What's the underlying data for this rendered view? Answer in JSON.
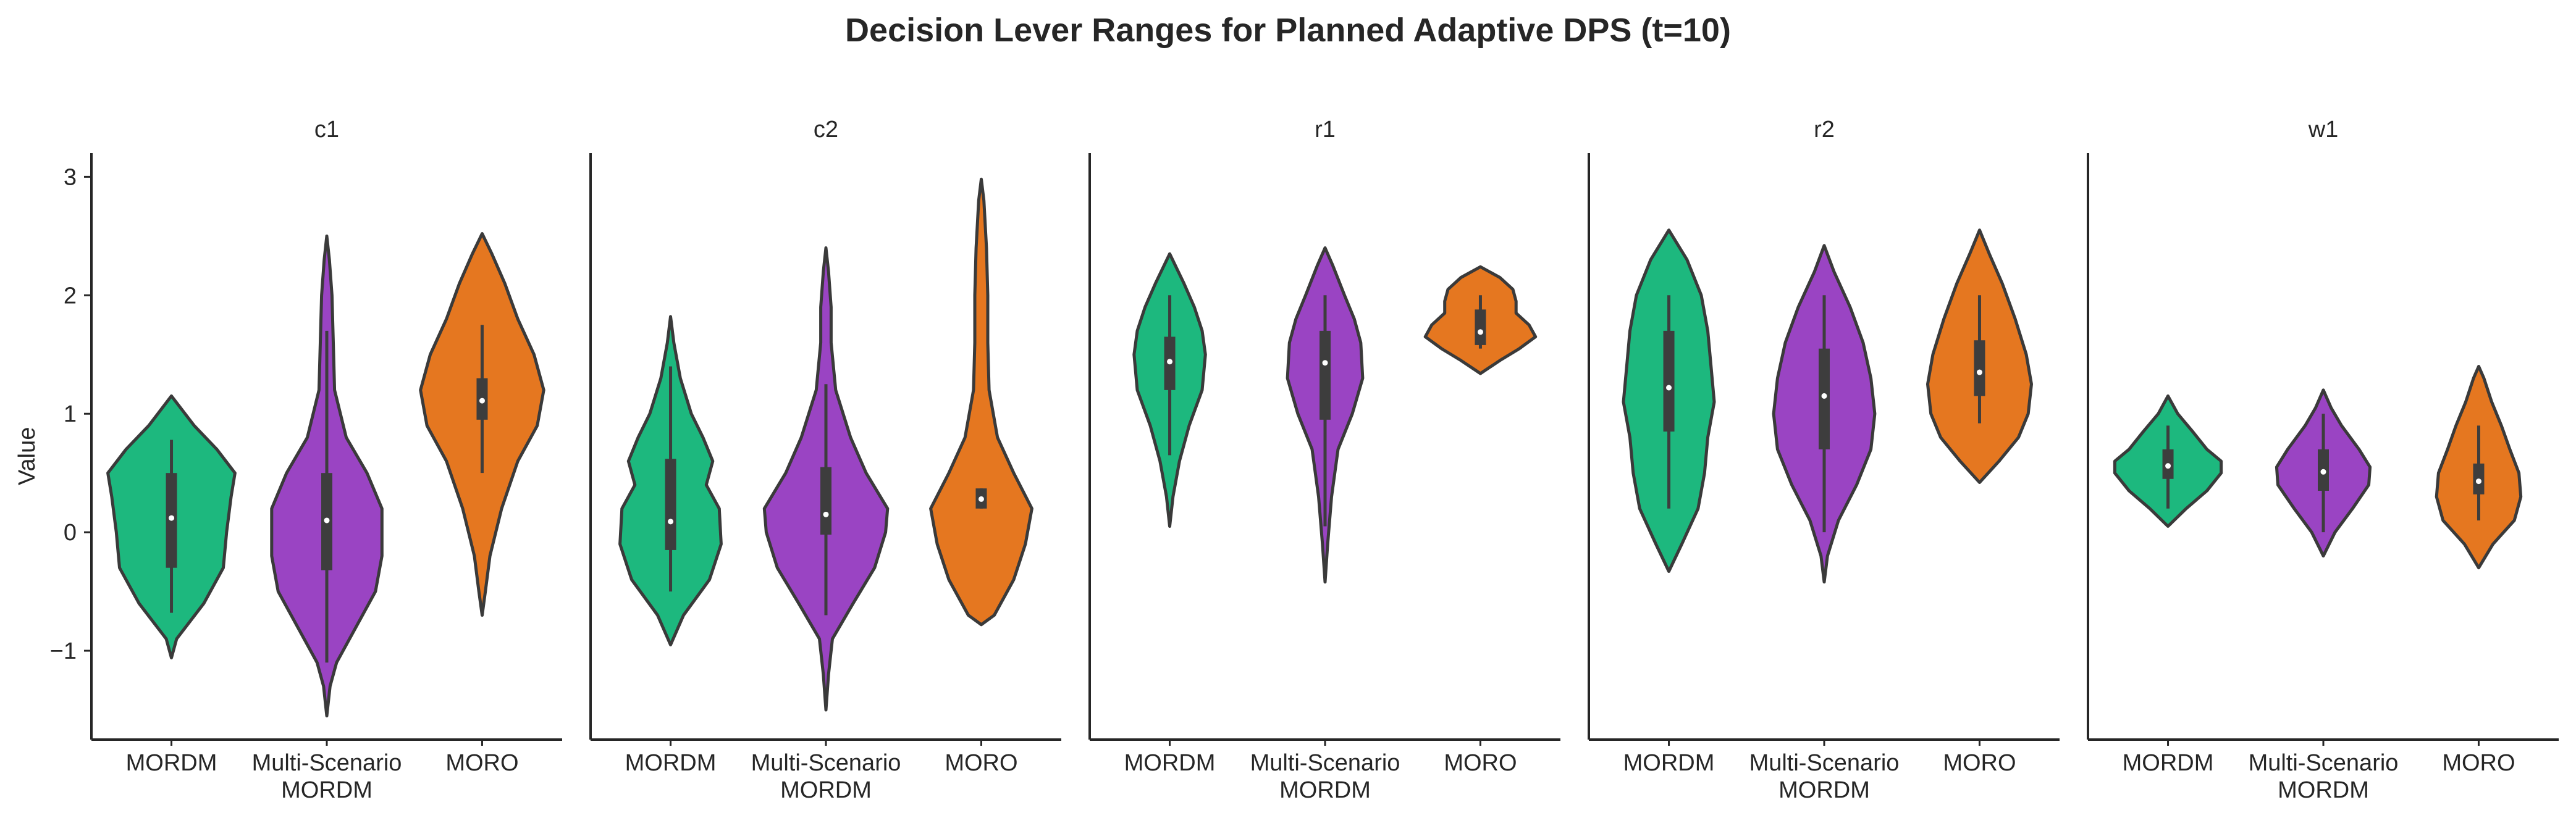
{
  "chart_data": {
    "type": "violin",
    "title": "Decision Lever Ranges for Planned Adaptive DPS (t=10)",
    "ylabel": "Value",
    "xlabel": "",
    "ylim": [
      -1.75,
      3.2
    ],
    "yticks": [
      -1,
      0,
      1,
      2,
      3
    ],
    "ytick_labels": [
      "−1",
      "0",
      "1",
      "2",
      "3"
    ],
    "grid": false,
    "legend": "none",
    "categories": [
      "MORDM",
      "Multi-Scenario MORDM",
      "MORO"
    ],
    "category_labels": [
      [
        "MORDM"
      ],
      [
        "Multi-Scenario",
        "MORDM"
      ],
      [
        "MORO"
      ]
    ],
    "colors": {
      "MORDM": "#1db87e",
      "Multi-Scenario MORDM": "#9a44c3",
      "MORO": "#e57720",
      "outline": "#3a3a3a"
    },
    "panels": [
      {
        "name": "c1",
        "groups": [
          {
            "method": "MORDM",
            "median": 0.12,
            "q1": -0.3,
            "q3": 0.5,
            "whisker": [
              -0.68,
              0.78
            ],
            "profile": [
              [
                -1.06,
                0
              ],
              [
                -0.9,
                0.08
              ],
              [
                -0.6,
                0.5
              ],
              [
                -0.3,
                0.8
              ],
              [
                0.0,
                0.85
              ],
              [
                0.3,
                0.92
              ],
              [
                0.5,
                0.98
              ],
              [
                0.7,
                0.7
              ],
              [
                0.9,
                0.35
              ],
              [
                1.15,
                0
              ]
            ]
          },
          {
            "method": "Multi-Scenario MORDM",
            "median": 0.1,
            "q1": -0.32,
            "q3": 0.5,
            "whisker": [
              -1.1,
              1.7
            ],
            "profile": [
              [
                -1.55,
                0
              ],
              [
                -1.3,
                0.05
              ],
              [
                -1.1,
                0.15
              ],
              [
                -0.8,
                0.45
              ],
              [
                -0.5,
                0.75
              ],
              [
                -0.2,
                0.85
              ],
              [
                0.2,
                0.85
              ],
              [
                0.5,
                0.62
              ],
              [
                0.8,
                0.3
              ],
              [
                1.2,
                0.12
              ],
              [
                1.6,
                0.1
              ],
              [
                2.0,
                0.08
              ],
              [
                2.3,
                0.04
              ],
              [
                2.5,
                0
              ]
            ]
          },
          {
            "method": "MORO",
            "median": 1.11,
            "q1": 0.95,
            "q3": 1.3,
            "whisker": [
              0.5,
              1.75
            ],
            "profile": [
              [
                -0.7,
                0
              ],
              [
                -0.5,
                0.05
              ],
              [
                -0.2,
                0.12
              ],
              [
                0.2,
                0.3
              ],
              [
                0.6,
                0.55
              ],
              [
                0.9,
                0.85
              ],
              [
                1.2,
                0.95
              ],
              [
                1.5,
                0.8
              ],
              [
                1.8,
                0.55
              ],
              [
                2.1,
                0.35
              ],
              [
                2.35,
                0.15
              ],
              [
                2.52,
                0
              ]
            ]
          }
        ]
      },
      {
        "name": "c2",
        "groups": [
          {
            "method": "MORDM",
            "median": 0.09,
            "q1": -0.15,
            "q3": 0.62,
            "whisker": [
              -0.5,
              1.4
            ],
            "profile": [
              [
                -0.95,
                0
              ],
              [
                -0.7,
                0.2
              ],
              [
                -0.4,
                0.6
              ],
              [
                -0.1,
                0.78
              ],
              [
                0.2,
                0.75
              ],
              [
                0.4,
                0.55
              ],
              [
                0.6,
                0.65
              ],
              [
                0.8,
                0.5
              ],
              [
                1.0,
                0.32
              ],
              [
                1.3,
                0.15
              ],
              [
                1.6,
                0.05
              ],
              [
                1.82,
                0
              ]
            ]
          },
          {
            "method": "Multi-Scenario MORDM",
            "median": 0.15,
            "q1": -0.02,
            "q3": 0.55,
            "whisker": [
              -0.7,
              1.25
            ],
            "profile": [
              [
                -1.5,
                0
              ],
              [
                -1.2,
                0.04
              ],
              [
                -0.9,
                0.1
              ],
              [
                -0.6,
                0.42
              ],
              [
                -0.3,
                0.75
              ],
              [
                0.0,
                0.92
              ],
              [
                0.2,
                0.95
              ],
              [
                0.5,
                0.62
              ],
              [
                0.8,
                0.38
              ],
              [
                1.2,
                0.15
              ],
              [
                1.6,
                0.08
              ],
              [
                1.9,
                0.08
              ],
              [
                2.2,
                0.04
              ],
              [
                2.4,
                0
              ]
            ]
          },
          {
            "method": "MORO",
            "median": 0.28,
            "q1": 0.2,
            "q3": 0.37,
            "whisker": [
              0.2,
              0.37
            ],
            "profile": [
              [
                -0.78,
                0
              ],
              [
                -0.7,
                0.2
              ],
              [
                -0.4,
                0.5
              ],
              [
                -0.1,
                0.68
              ],
              [
                0.2,
                0.78
              ],
              [
                0.5,
                0.5
              ],
              [
                0.8,
                0.25
              ],
              [
                1.2,
                0.12
              ],
              [
                1.6,
                0.1
              ],
              [
                2.0,
                0.1
              ],
              [
                2.4,
                0.08
              ],
              [
                2.8,
                0.04
              ],
              [
                2.98,
                0
              ]
            ]
          }
        ]
      },
      {
        "name": "r1",
        "groups": [
          {
            "method": "MORDM",
            "median": 1.44,
            "q1": 1.2,
            "q3": 1.65,
            "whisker": [
              0.65,
              2.0
            ],
            "profile": [
              [
                0.05,
                0
              ],
              [
                0.3,
                0.05
              ],
              [
                0.6,
                0.15
              ],
              [
                0.9,
                0.3
              ],
              [
                1.2,
                0.5
              ],
              [
                1.5,
                0.55
              ],
              [
                1.7,
                0.5
              ],
              [
                1.9,
                0.38
              ],
              [
                2.1,
                0.22
              ],
              [
                2.35,
                0
              ]
            ]
          },
          {
            "method": "Multi-Scenario MORDM",
            "median": 1.43,
            "q1": 0.95,
            "q3": 1.7,
            "whisker": [
              0.05,
              2.0
            ],
            "profile": [
              [
                -0.42,
                0
              ],
              [
                -0.1,
                0.04
              ],
              [
                0.3,
                0.1
              ],
              [
                0.7,
                0.2
              ],
              [
                1.0,
                0.42
              ],
              [
                1.3,
                0.58
              ],
              [
                1.6,
                0.55
              ],
              [
                1.8,
                0.45
              ],
              [
                2.0,
                0.3
              ],
              [
                2.25,
                0.12
              ],
              [
                2.4,
                0
              ]
            ]
          },
          {
            "method": "MORO",
            "median": 1.69,
            "q1": 1.58,
            "q3": 1.88,
            "whisker": [
              1.55,
              2.0
            ],
            "profile": [
              [
                1.34,
                0
              ],
              [
                1.45,
                0.3
              ],
              [
                1.55,
                0.6
              ],
              [
                1.65,
                0.85
              ],
              [
                1.75,
                0.75
              ],
              [
                1.85,
                0.55
              ],
              [
                1.95,
                0.55
              ],
              [
                2.05,
                0.5
              ],
              [
                2.15,
                0.3
              ],
              [
                2.24,
                0
              ]
            ]
          }
        ]
      },
      {
        "name": "r2",
        "groups": [
          {
            "method": "MORDM",
            "median": 1.22,
            "q1": 0.85,
            "q3": 1.7,
            "whisker": [
              0.2,
              2.0
            ],
            "profile": [
              [
                -0.33,
                0
              ],
              [
                -0.1,
                0.2
              ],
              [
                0.2,
                0.45
              ],
              [
                0.5,
                0.55
              ],
              [
                0.8,
                0.6
              ],
              [
                1.1,
                0.7
              ],
              [
                1.4,
                0.65
              ],
              [
                1.7,
                0.6
              ],
              [
                2.0,
                0.5
              ],
              [
                2.3,
                0.28
              ],
              [
                2.55,
                0
              ]
            ]
          },
          {
            "method": "Multi-Scenario MORDM",
            "median": 1.15,
            "q1": 0.7,
            "q3": 1.55,
            "whisker": [
              0.0,
              2.0
            ],
            "profile": [
              [
                -0.42,
                0
              ],
              [
                -0.2,
                0.05
              ],
              [
                0.1,
                0.22
              ],
              [
                0.4,
                0.5
              ],
              [
                0.7,
                0.72
              ],
              [
                1.0,
                0.78
              ],
              [
                1.3,
                0.72
              ],
              [
                1.6,
                0.6
              ],
              [
                1.9,
                0.4
              ],
              [
                2.2,
                0.15
              ],
              [
                2.42,
                0
              ]
            ]
          },
          {
            "method": "MORO",
            "median": 1.35,
            "q1": 1.15,
            "q3": 1.62,
            "whisker": [
              0.92,
              2.0
            ],
            "profile": [
              [
                0.42,
                0
              ],
              [
                0.6,
                0.3
              ],
              [
                0.8,
                0.6
              ],
              [
                1.0,
                0.75
              ],
              [
                1.25,
                0.8
              ],
              [
                1.5,
                0.72
              ],
              [
                1.8,
                0.55
              ],
              [
                2.1,
                0.35
              ],
              [
                2.35,
                0.15
              ],
              [
                2.55,
                0
              ]
            ]
          }
        ]
      },
      {
        "name": "w1",
        "groups": [
          {
            "method": "MORDM",
            "median": 0.56,
            "q1": 0.45,
            "q3": 0.7,
            "whisker": [
              0.2,
              0.9
            ],
            "profile": [
              [
                0.05,
                0
              ],
              [
                0.2,
                0.28
              ],
              [
                0.35,
                0.6
              ],
              [
                0.5,
                0.82
              ],
              [
                0.6,
                0.82
              ],
              [
                0.7,
                0.6
              ],
              [
                0.85,
                0.38
              ],
              [
                1.0,
                0.15
              ],
              [
                1.15,
                0
              ]
            ]
          },
          {
            "method": "Multi-Scenario MORDM",
            "median": 0.51,
            "q1": 0.35,
            "q3": 0.7,
            "whisker": [
              0.0,
              1.0
            ],
            "profile": [
              [
                -0.2,
                0
              ],
              [
                0.0,
                0.18
              ],
              [
                0.2,
                0.45
              ],
              [
                0.4,
                0.7
              ],
              [
                0.55,
                0.72
              ],
              [
                0.7,
                0.55
              ],
              [
                0.9,
                0.28
              ],
              [
                1.05,
                0.12
              ],
              [
                1.2,
                0
              ]
            ]
          },
          {
            "method": "MORO",
            "median": 0.43,
            "q1": 0.32,
            "q3": 0.58,
            "whisker": [
              0.1,
              0.9
            ],
            "profile": [
              [
                -0.3,
                0
              ],
              [
                -0.1,
                0.22
              ],
              [
                0.1,
                0.55
              ],
              [
                0.3,
                0.65
              ],
              [
                0.5,
                0.62
              ],
              [
                0.7,
                0.48
              ],
              [
                0.9,
                0.35
              ],
              [
                1.1,
                0.2
              ],
              [
                1.3,
                0.08
              ],
              [
                1.4,
                0
              ]
            ]
          }
        ]
      }
    ]
  }
}
